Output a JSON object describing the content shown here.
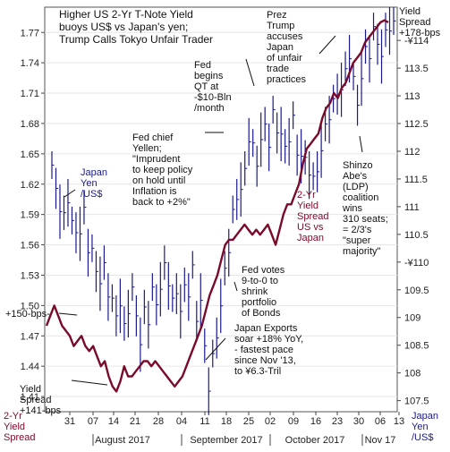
{
  "chart_data": {
    "type": "line",
    "title": [
      "Higher US 2-Yr T-Note Yield",
      "buoys US$ vs Japan's yen;",
      "Trump Calls Tokyo Unfair Trader"
    ],
    "y_left": {
      "ticks": [
        "1.77",
        "1.74",
        "1.71",
        "1.68",
        "1.65",
        "1.62",
        "1.59",
        "1.56",
        "1.53",
        "1.50",
        "1.47",
        "1.44",
        "1.41"
      ],
      "label": [
        "2-Yr",
        "Yield",
        "Spread"
      ],
      "range": [
        1.395,
        1.795
      ]
    },
    "y_right": {
      "ticks": [
        "-¥114",
        "113.5",
        "113",
        "112.5",
        "112",
        "111.5",
        "111",
        "110.5",
        "-¥110",
        "109.5",
        "109",
        "108.5",
        "108",
        "107.5"
      ],
      "values": [
        114,
        113.5,
        113,
        112.5,
        112,
        111.5,
        111,
        110.5,
        110,
        109.5,
        109,
        108.5,
        108,
        107.5
      ],
      "label": [
        "Japan",
        "Yen",
        "/US$"
      ],
      "range": [
        107.3,
        114.6
      ]
    },
    "x": {
      "ticks": [
        "31",
        "07",
        "14",
        "21",
        "28",
        "04",
        "11",
        "18",
        "25",
        "02",
        "09",
        "16",
        "23",
        "30",
        "06",
        "13"
      ],
      "months": [
        "August 2017",
        "September 2017",
        "October 2017",
        "Nov 17"
      ]
    },
    "series": [
      {
        "name": "2-Yr Yield Spread US vs Japan",
        "color": "#7a0a2a",
        "axis": "left",
        "values": [
          1.48,
          1.49,
          1.5,
          1.49,
          1.48,
          1.475,
          1.47,
          1.46,
          1.465,
          1.47,
          1.46,
          1.455,
          1.46,
          1.45,
          1.44,
          1.445,
          1.43,
          1.42,
          1.415,
          1.425,
          1.44,
          1.43,
          1.43,
          1.435,
          1.44,
          1.445,
          1.445,
          1.44,
          1.445,
          1.44,
          1.435,
          1.43,
          1.425,
          1.42,
          1.425,
          1.43,
          1.44,
          1.45,
          1.46,
          1.47,
          1.48,
          1.495,
          1.51,
          1.52,
          1.53,
          1.545,
          1.56,
          1.565,
          1.565,
          1.57,
          1.575,
          1.58,
          1.575,
          1.57,
          1.575,
          1.57,
          1.575,
          1.58,
          1.57,
          1.56,
          1.575,
          1.59,
          1.6,
          1.6,
          1.61,
          1.62,
          1.64,
          1.655,
          1.66,
          1.665,
          1.67,
          1.685,
          1.695,
          1.7,
          1.71,
          1.705,
          1.715,
          1.72,
          1.73,
          1.74,
          1.745,
          1.75,
          1.76,
          1.765,
          1.77,
          1.775,
          1.78,
          1.782,
          1.78
        ]
      },
      {
        "name": "Japan Yen /US$",
        "color": "#1a1a8c",
        "axis": "right",
        "high": [
          112.0,
          111.7,
          111.4,
          111.2,
          111.5,
          111.0,
          110.9,
          111.0,
          111.3,
          110.6,
          110.5,
          110.2,
          110.1,
          110.3,
          109.8,
          109.6,
          109.4,
          109.7,
          109.2,
          109.5,
          109.8,
          109.4,
          109.0,
          109.5,
          109.3,
          109.8,
          109.6,
          110.0,
          110.3,
          110.0,
          109.6,
          109.8,
          109.6,
          109.9,
          109.8,
          110.2,
          109.3,
          109.8,
          108.8,
          108.1,
          108.6,
          109.0,
          109.7,
          110.2,
          110.6,
          111.2,
          111.5,
          111.8,
          112.0,
          112.6,
          112.4,
          112.1,
          112.7,
          112.8,
          112.5,
          113.0,
          112.7,
          112.8,
          112.4,
          112.6,
          112.9,
          112.3,
          112.4,
          112.2,
          112.0,
          111.8,
          112.0,
          112.5,
          112.8,
          113.0,
          113.2,
          113.4,
          113.6,
          113.8,
          114.1,
          113.6,
          113.2,
          113.8,
          114.2,
          114.1,
          114.5,
          114.3,
          114.2,
          114.5,
          114.6,
          114.6
        ]
      }
    ]
  },
  "labels": {
    "prez_trump": [
      "Prez",
      "Trump",
      "accuses",
      "Japan",
      "of unfair",
      "trade",
      "practices"
    ],
    "yield_spread_top": [
      "Yield",
      "Spread",
      "+178-bps"
    ],
    "fed_qt": [
      "Fed",
      "begins",
      "QT at",
      "-$10-Bln",
      "/month"
    ],
    "yellen": [
      "Fed chief",
      "Yellen;",
      "\"Imprudent",
      "to keep policy",
      "on hold until",
      "Inflation is",
      "back to +2%\""
    ],
    "abe": [
      "Shinzo",
      "Abe's",
      "(LDP)",
      "coalition",
      "wins",
      "310 seats;",
      "= 2/3's",
      "\"super",
      "majority\""
    ],
    "series_label_spread": [
      "2-Yr",
      "Yield",
      "Spread",
      "US vs",
      "Japan"
    ],
    "fed_votes": [
      "Fed votes",
      "9-to-0 to",
      "shrink",
      "portfolio",
      "of Bonds"
    ],
    "plus150": "+150-bps-",
    "exports": [
      "Japan Exports",
      "soar +18% YoY,",
      "- fastest pace",
      "since Nov '13,",
      "to ¥6.3-Tril"
    ],
    "yield_spread_bottom": [
      "Yield",
      "Spread",
      "+141-bps"
    ]
  }
}
